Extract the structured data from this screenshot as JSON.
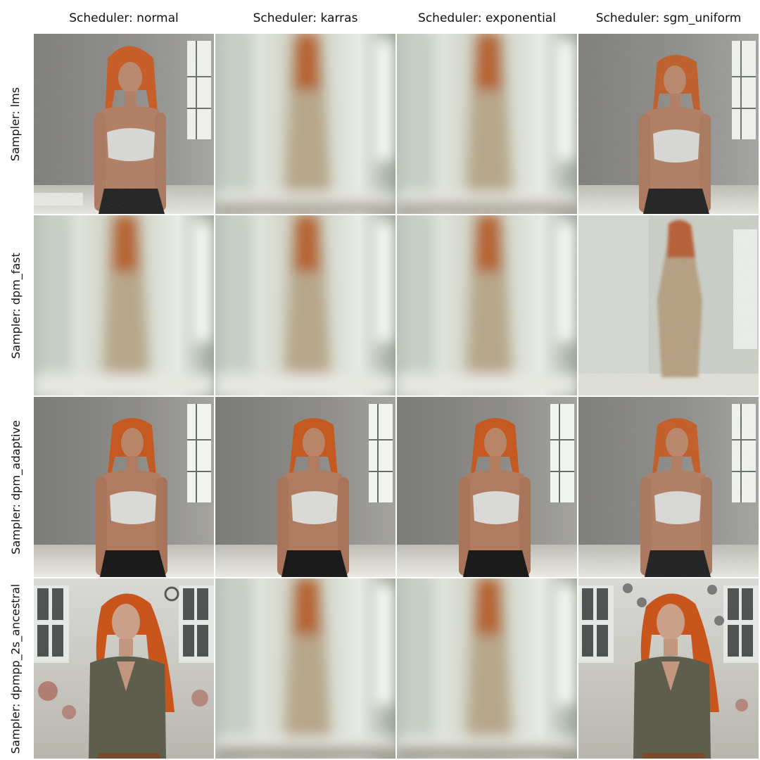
{
  "columns": [
    {
      "label": "Scheduler: normal"
    },
    {
      "label": "Scheduler: karras"
    },
    {
      "label": "Scheduler: exponential"
    },
    {
      "label": "Scheduler: sgm_uniform"
    }
  ],
  "rows": [
    {
      "label": "Sampler: lms",
      "cells": [
        "sharp",
        "blurred",
        "blurred",
        "sharp"
      ]
    },
    {
      "label": "Sampler: dpm_fast",
      "cells": [
        "blurred",
        "blurred",
        "blurred",
        "noisy"
      ]
    },
    {
      "label": "Sampler: dpm_adaptive",
      "cells": [
        "sharp",
        "sharp",
        "sharp",
        "sharp"
      ]
    },
    {
      "label": "Sampler: dpmpp_2s_ancestral",
      "cells": [
        "sharp-industrial",
        "blurred",
        "blurred",
        "sharp-industrial"
      ]
    }
  ],
  "colors": {
    "hair": "#c8561c",
    "skin": "#b98568",
    "top_white": "#d9d9d6",
    "pants": "#1b1b1b",
    "olive_top": "#5d5f4c",
    "wall_gray": "#8b8a86",
    "blur_bg": "#cfd6cc"
  }
}
